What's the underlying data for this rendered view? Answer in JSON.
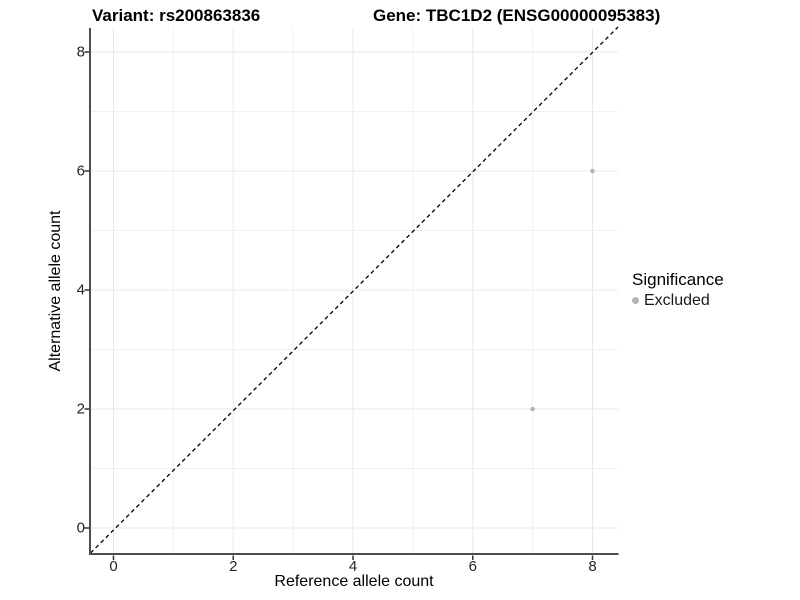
{
  "titles": {
    "variant": "Variant: rs200863836",
    "gene": "Gene: TBC1D2 (ENSG00000095383)"
  },
  "chart_data": {
    "type": "scatter",
    "title": "Variant: rs200863836   Gene: TBC1D2 (ENSG00000095383)",
    "xlabel": "Reference allele count",
    "ylabel": "Alternative allele count",
    "xlim": [
      -0.4,
      8.45
    ],
    "ylim": [
      -0.44,
      8.45
    ],
    "xticks": [
      0,
      2,
      4,
      6,
      8
    ],
    "yticks": [
      0,
      2,
      4,
      6,
      8
    ],
    "grid": {
      "on": true,
      "major_every": 2,
      "minor_every": 1
    },
    "identity_line": {
      "shown": true,
      "style": "dashed",
      "color": "#000000",
      "equation": "y = x"
    },
    "series": [
      {
        "name": "Excluded",
        "color": "#b4b4b4",
        "points": [
          {
            "x": 8,
            "y": 6
          },
          {
            "x": 7,
            "y": 2
          }
        ]
      }
    ],
    "legend": {
      "title": "Significance",
      "position": "right",
      "entries": [
        {
          "label": "Excluded",
          "color": "#b4b4b4"
        }
      ]
    },
    "colors": {
      "background": "#ffffff",
      "grid_major": "#e8e8e8",
      "grid_minor": "#f0f0f0",
      "axis_line": "#4d4d4d",
      "tick": "#333333",
      "tick_label": "#262626",
      "point": "#b4b4b4"
    }
  }
}
